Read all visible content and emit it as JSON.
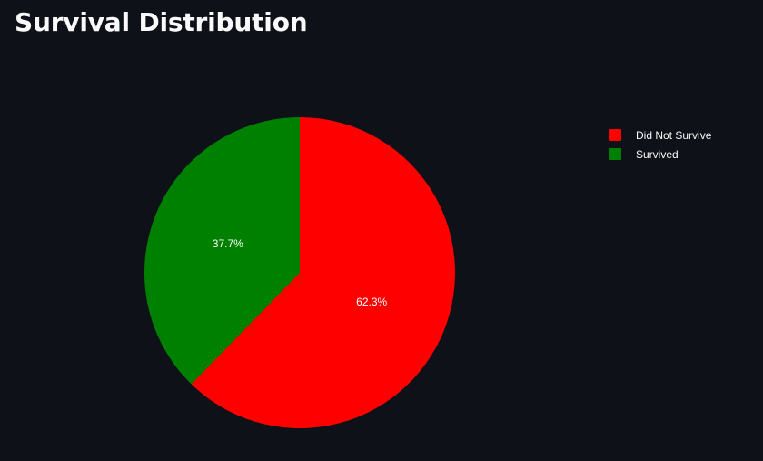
{
  "page": {
    "title": "Survival Distribution"
  },
  "chart_data": {
    "type": "pie",
    "title": "Survival Distribution",
    "labels": [
      "Did Not Survive",
      "Survived"
    ],
    "values": [
      62.3,
      37.7
    ],
    "text_labels": [
      "62.3%",
      "37.7%"
    ],
    "colors": [
      "#ff0000",
      "#008000"
    ],
    "legend_position": "top-right"
  }
}
